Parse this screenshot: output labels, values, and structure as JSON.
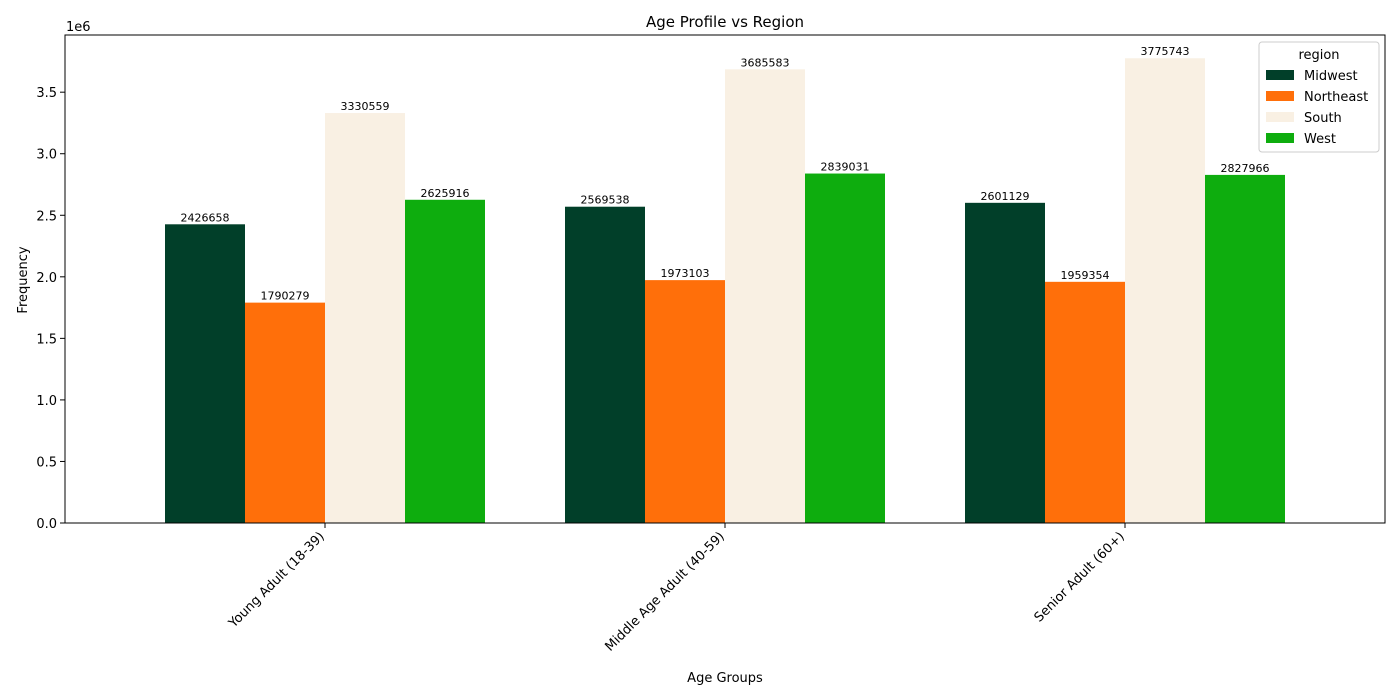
{
  "chart_data": {
    "type": "bar",
    "title": "Age Profile vs Region",
    "xlabel": "Age Groups",
    "ylabel": "Frequency",
    "y_scale_label": "1e6",
    "categories": [
      "Young Adult (18-39)",
      "Middle Age Adult (40-59)",
      "Senior Adult (60+)"
    ],
    "series": [
      {
        "name": "Midwest",
        "color": "#013f29",
        "values": [
          2426658,
          2569538,
          2601129
        ]
      },
      {
        "name": "Northeast",
        "color": "#ff6f0a",
        "values": [
          1790279,
          1973103,
          1959354
        ]
      },
      {
        "name": "South",
        "color": "#f9f0e3",
        "values": [
          3330559,
          3685583,
          3775743
        ]
      },
      {
        "name": "West",
        "color": "#0ead0e",
        "values": [
          2625916,
          2839031,
          2827966
        ]
      }
    ],
    "y_ticks": [
      "0.0",
      "0.5",
      "1.0",
      "1.5",
      "2.0",
      "2.5",
      "3.0",
      "3.5"
    ],
    "y_tick_values": [
      0,
      500000,
      1000000,
      1500000,
      2000000,
      2500000,
      3000000,
      3500000
    ],
    "ylim": [
      0,
      3964530
    ],
    "grid": false,
    "legend": {
      "title": "region",
      "placement": "top-right"
    }
  }
}
